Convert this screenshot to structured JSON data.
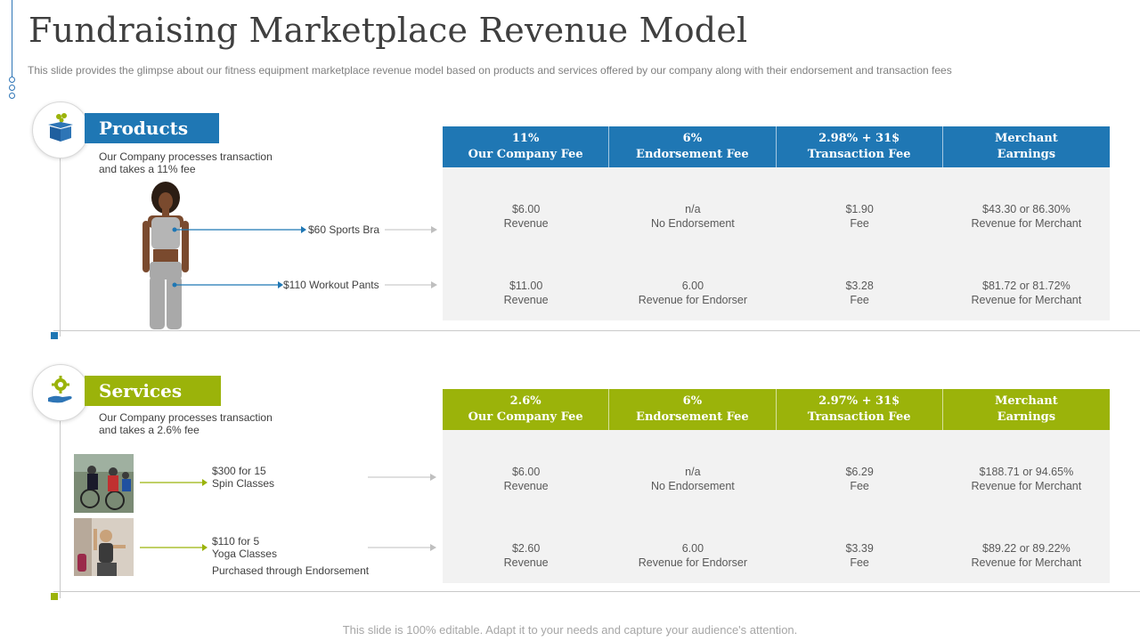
{
  "title": "Fundraising Marketplace Revenue Model",
  "subtitle": "This slide provides  the glimpse about our fitness equipment marketplace revenue  model based on products and services offered  by our company along with their endorsement  and transaction fees",
  "colors": {
    "blue": "#1f77b4",
    "green": "#9bb30a",
    "grey_bg": "#f2f2f2"
  },
  "products": {
    "heading": "Products",
    "icon": "gift-box-icon",
    "description_line1": "Our Company processes transaction",
    "description_line2": "and takes a 11% fee",
    "items": [
      {
        "label": "$60 Sports Bra"
      },
      {
        "label": "$110 Workout Pants"
      }
    ],
    "table": {
      "headers": [
        {
          "line1": "11%",
          "line2": "Our Company Fee"
        },
        {
          "line1": "6%",
          "line2": "Endorsement Fee"
        },
        {
          "line1": "2.98% + 31$",
          "line2": "Transaction Fee"
        },
        {
          "line1": "Merchant",
          "line2": "Earnings"
        }
      ],
      "rows": [
        [
          {
            "line1": "$6.00",
            "line2": "Revenue"
          },
          {
            "line1": "n/a",
            "line2": "No Endorsement"
          },
          {
            "line1": "$1.90",
            "line2": "Fee"
          },
          {
            "line1": "$43.30  or 86.30%",
            "line2": "Revenue  for Merchant"
          }
        ],
        [
          {
            "line1": "$11.00",
            "line2": "Revenue"
          },
          {
            "line1": "6.00",
            "line2": "Revenue  for Endorser"
          },
          {
            "line1": "$3.28",
            "line2": "Fee"
          },
          {
            "line1": "$81.72  or 81.72%",
            "line2": "Revenue  for Merchant"
          }
        ]
      ]
    }
  },
  "services": {
    "heading": "Services",
    "icon": "hand-gear-icon",
    "description_line1": "Our Company  processes transaction",
    "description_line2": "and takes  a 2.6% fee",
    "items": [
      {
        "line1": "$300  for 15",
        "line2": "Spin Classes",
        "line3": ""
      },
      {
        "line1": "$110  for 5",
        "line2": "Yoga Classes",
        "line3": "Purchased through Endorsement"
      }
    ],
    "table": {
      "headers": [
        {
          "line1": "2.6%",
          "line2": "Our Company Fee"
        },
        {
          "line1": "6%",
          "line2": "Endorsement Fee"
        },
        {
          "line1": "2.97% + 31$",
          "line2": "Transaction Fee"
        },
        {
          "line1": "Merchant",
          "line2": "Earnings"
        }
      ],
      "rows": [
        [
          {
            "line1": "$6.00",
            "line2": "Revenue"
          },
          {
            "line1": "n/a",
            "line2": "No Endorsement"
          },
          {
            "line1": "$6.29",
            "line2": "Fee"
          },
          {
            "line1": "$188.71  or 94.65%",
            "line2": "Revenue  for Merchant"
          }
        ],
        [
          {
            "line1": "$2.60",
            "line2": "Revenue"
          },
          {
            "line1": "6.00",
            "line2": "Revenue  for Endorser"
          },
          {
            "line1": "$3.39",
            "line2": "Fee"
          },
          {
            "line1": "$89.22  or 89.22%",
            "line2": "Revenue  for Merchant"
          }
        ]
      ]
    }
  },
  "footer": "This slide is 100% editable. Adapt it to your needs and capture your audience's attention."
}
